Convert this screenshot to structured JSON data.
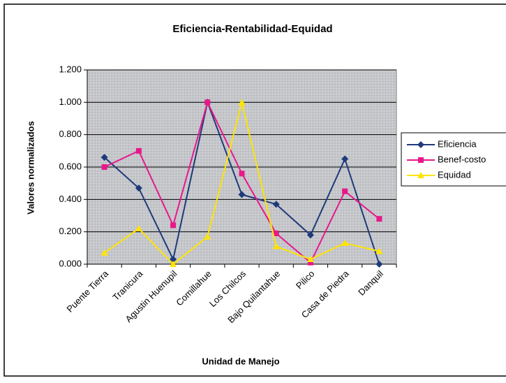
{
  "chart_data": {
    "type": "line",
    "title": "Eficiencia-Rentabilidad-Equidad",
    "x_label": "Unidad de Manejo",
    "y_label": "Valores normalizados",
    "categories": [
      "Puente Tierra",
      "Tranicura",
      "Agustin Huenupil",
      "Comillahue",
      "Los Chilcos",
      "Bajo Quilantahue",
      "Pilico",
      "Casa de Piedra",
      "Danquil"
    ],
    "series": [
      {
        "name": "Eficiencia",
        "color": "#1f3a7a",
        "marker": "diamond",
        "values": [
          0.66,
          0.47,
          0.03,
          1.0,
          0.43,
          0.37,
          0.18,
          0.65,
          0.0
        ]
      },
      {
        "name": "Benef-costo",
        "color": "#e8178a",
        "marker": "square",
        "values": [
          0.6,
          0.7,
          0.24,
          1.0,
          0.56,
          0.19,
          0.01,
          0.45,
          0.28
        ]
      },
      {
        "name": "Equidad",
        "color": "#ffe400",
        "marker": "triangle",
        "values": [
          0.07,
          0.22,
          0.0,
          0.17,
          1.0,
          0.11,
          0.03,
          0.13,
          0.08
        ]
      }
    ],
    "ylim": [
      0,
      1.2
    ],
    "yticks": [
      {
        "value": 0,
        "label": "0.000"
      },
      {
        "value": 0.2,
        "label": "0.200"
      },
      {
        "value": 0.4,
        "label": "0.400"
      },
      {
        "value": 0.6,
        "label": "0.600"
      },
      {
        "value": 0.8,
        "label": "0.800"
      },
      {
        "value": 1.0,
        "label": "1.000"
      },
      {
        "value": 1.2,
        "label": "1.200"
      }
    ],
    "grid": true,
    "legend": "right"
  }
}
